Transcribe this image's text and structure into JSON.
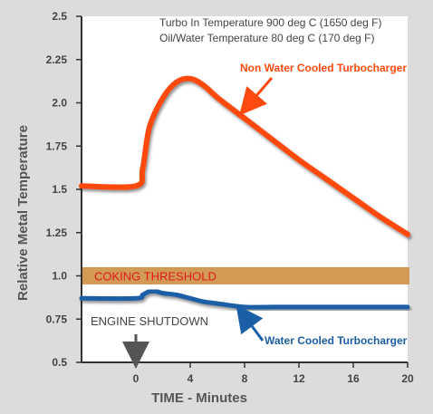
{
  "chart_data": {
    "type": "line",
    "xlabel": "TIME - Minutes",
    "ylabel": "Relative Metal Temperature",
    "xlim": [
      -4,
      20
    ],
    "ylim": [
      0.5,
      2.5
    ],
    "x_ticks": [
      0,
      4,
      8,
      12,
      16,
      20
    ],
    "y_ticks": [
      0.5,
      0.75,
      1.0,
      1.25,
      1.5,
      1.75,
      2.0,
      2.25,
      2.5
    ],
    "y_tick_labels": [
      "0.5",
      "0.75",
      "1.0",
      "1.25",
      "1.5",
      "1.75",
      "2.0",
      "2.25",
      "2.5"
    ],
    "annotations": [
      "Turbo In Temperature 900 deg C (1650 deg F)",
      "Oil/Water Temperature 80 deg C (170 deg F)"
    ],
    "series": [
      {
        "name": "Non Water Cooled Turbocharger",
        "color": "#ff4a10",
        "x": [
          -4,
          0,
          0.5,
          1,
          2,
          3,
          4,
          5,
          6,
          8,
          10,
          12,
          14,
          16,
          18,
          20
        ],
        "y": [
          1.52,
          1.52,
          1.62,
          1.86,
          2.03,
          2.12,
          2.14,
          2.1,
          2.03,
          1.91,
          1.79,
          1.67,
          1.56,
          1.45,
          1.34,
          1.24
        ]
      },
      {
        "name": "Water Cooled Turbocharger",
        "color": "#1a5ea6",
        "x": [
          -4,
          0,
          0.5,
          1,
          1.5,
          2,
          3,
          4,
          5,
          6,
          8,
          10,
          12,
          20
        ],
        "y": [
          0.87,
          0.87,
          0.89,
          0.91,
          0.91,
          0.9,
          0.89,
          0.87,
          0.85,
          0.84,
          0.82,
          0.82,
          0.82,
          0.82
        ]
      }
    ],
    "bands": [
      {
        "label": "COKING THRESHOLD",
        "y_range": [
          0.95,
          1.05
        ],
        "color": "#d19a55"
      }
    ],
    "events": [
      {
        "label": "ENGINE SHUTDOWN",
        "x": 0
      }
    ],
    "grid": false
  }
}
